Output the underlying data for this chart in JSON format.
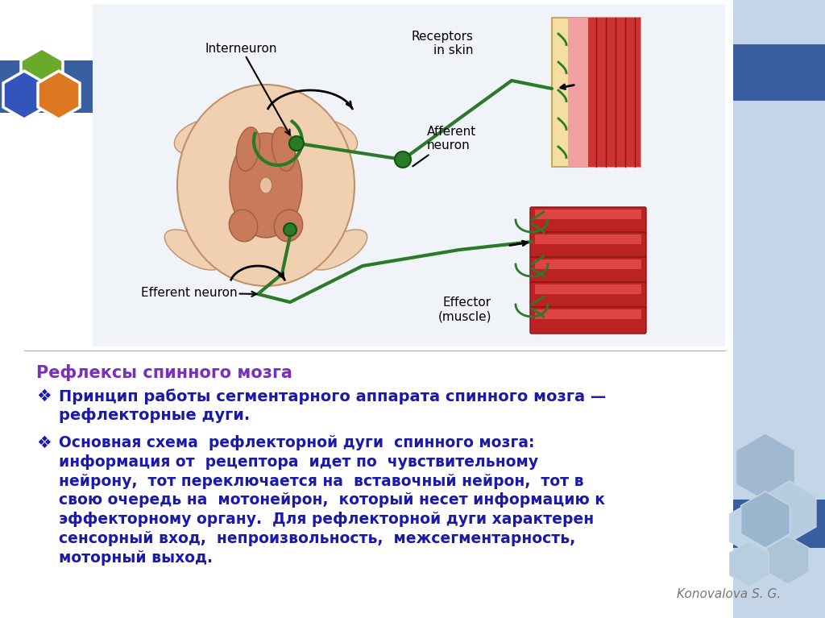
{
  "slide_bg": "#ffffff",
  "bar_blue": "#3a5fa0",
  "sidebar_light": "#c5d5e8",
  "hex_logo": [
    "#3355bb",
    "#6aaa2a",
    "#dd7722"
  ],
  "title_text": "Рефлексы спинного мозга",
  "title_color": "#7b2fbe",
  "bullet_color": "#1a1aaa",
  "bullet1": "Принцип работы сегментарного аппарата спинного мозга —\nрефлекторные дуги.",
  "bullet2_line1": "Основная схема  рефлекторной дуги  спинного мозга:",
  "bullet2_rest": "информация от  рецептора  идет по  чувствительному\nнейрону,  тот переключается на  вставочный нейрон,  тот в\nсвою очередь на  мотонейрон,  который несет информацию к\nэффекторному органу.  Для рефлекторной дуги характерен\nсенсорный вход, непроизвольность, межсегментарность,\nмоторный выход.",
  "attribution": "Konovalova S. G.",
  "attribution_color": "#777777",
  "nerve_color": "#2a7a2a",
  "spine_outer": "#f0d0b0",
  "spine_inner": "#c87a5a",
  "skin_yellow": "#f5dfa0",
  "skin_pink": "#f0a0a0",
  "skin_red": "#cc3333",
  "muscle_red": "#bb2222",
  "muscle_dark": "#881111"
}
